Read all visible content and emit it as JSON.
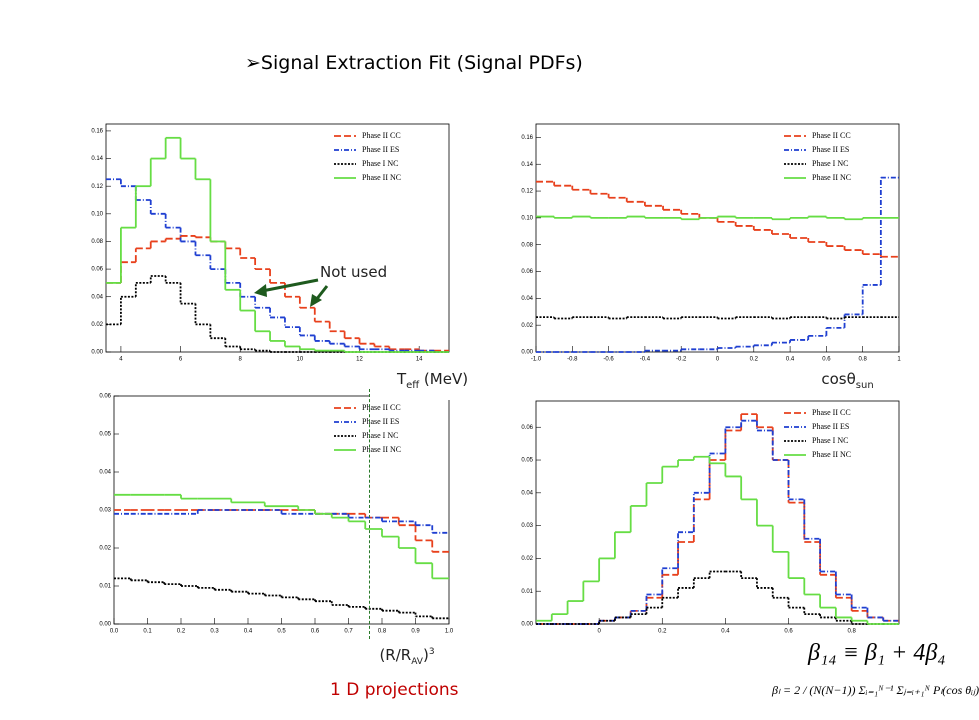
{
  "title": "Signal Extraction Fit (Signal PDFs)",
  "annotation": "Not used",
  "footer": "1 D projections",
  "formulas": [
    "β₁₄ ≡ β₁ + 4β₄",
    "βₗ = 2 / (N(N−1)) Σᵢ₌₁ᴺ⁻¹ Σⱼ₌ᵢ₊₁ᴺ Pₗ(cos θᵢⱼ)"
  ],
  "chart_data": [
    {
      "type": "histogram",
      "x_label": [
        "T",
        "eff",
        " (MeV)"
      ],
      "legend": "upper right",
      "bins": [
        3.5,
        4,
        4.5,
        5,
        5.5,
        6,
        6.5,
        7,
        7.5,
        8,
        8.5,
        9,
        9.5,
        10,
        10.5,
        11,
        11.5,
        12,
        12.5,
        13,
        13.5,
        14,
        14.5,
        15
      ],
      "xlim": [
        3.5,
        15
      ],
      "xticks": [
        4,
        6,
        8,
        10,
        12,
        14
      ],
      "ylim": [
        0,
        0.165
      ],
      "yticks": [
        {
          "value": 0,
          "label": "0.00"
        },
        0.02,
        0.04,
        0.06,
        0.08,
        {
          "value": 0.1,
          "label": "0.10"
        },
        0.12,
        0.14,
        0.16
      ],
      "series": [
        {
          "name": "Phase II CC",
          "color": "#e8401c",
          "style": "dashed",
          "values": [
            0.05,
            0.065,
            0.075,
            0.08,
            0.082,
            0.084,
            0.083,
            0.08,
            0.075,
            0.068,
            0.06,
            0.05,
            0.04,
            0.032,
            0.022,
            0.015,
            0.01,
            0.006,
            0.004,
            0.002,
            0.002,
            0.001,
            0.001
          ]
        },
        {
          "name": "Phase II ES",
          "color": "#1f3fd1",
          "style": "dashdot",
          "values": [
            0.125,
            0.12,
            0.11,
            0.1,
            0.09,
            0.08,
            0.07,
            0.06,
            0.05,
            0.04,
            0.032,
            0.025,
            0.018,
            0.012,
            0.008,
            0.006,
            0.004,
            0.002,
            0.002,
            0.001,
            0.001,
            0.001,
            0
          ]
        },
        {
          "name": "Phase I  NC",
          "color": "#000000",
          "style": "dotted",
          "values": [
            0.02,
            0.04,
            0.05,
            0.055,
            0.05,
            0.035,
            0.02,
            0.01,
            0.004,
            0.002,
            0.001,
            0,
            0,
            0,
            0,
            0,
            0,
            0,
            0,
            0,
            0,
            0,
            0
          ]
        },
        {
          "name": "Phase II NC",
          "color": "#66dd44",
          "style": "solid",
          "values": [
            0.05,
            0.09,
            0.12,
            0.14,
            0.155,
            0.14,
            0.125,
            0.08,
            0.045,
            0.03,
            0.015,
            0.008,
            0.004,
            0.002,
            0.001,
            0.001,
            0,
            0,
            0,
            0,
            0,
            0,
            0
          ]
        }
      ]
    },
    {
      "type": "histogram",
      "x_label": [
        "cosθ",
        "sun"
      ],
      "legend": "upper right",
      "bins": [
        -1,
        -0.9,
        -0.8,
        -0.7,
        -0.6,
        -0.5,
        -0.4,
        -0.3,
        -0.2,
        -0.1,
        0,
        0.1,
        0.2,
        0.3,
        0.4,
        0.5,
        0.6,
        0.7,
        0.8,
        0.9,
        1
      ],
      "xlim": [
        -1,
        1
      ],
      "xticks": [
        {
          "value": -1,
          "label": "-1.0"
        },
        -0.8,
        -0.6,
        -0.4,
        -0.2,
        0,
        0.2,
        0.4,
        0.6,
        0.8,
        1
      ],
      "ylim": [
        0,
        0.17
      ],
      "yticks": [
        {
          "value": 0,
          "label": "0.00"
        },
        0.02,
        0.04,
        0.06,
        0.08,
        {
          "value": 0.1,
          "label": "0.10"
        },
        0.12,
        0.14,
        0.16
      ],
      "series": [
        {
          "name": "Phase II CC",
          "color": "#e8401c",
          "style": "dashed",
          "values": [
            0.127,
            0.124,
            0.121,
            0.118,
            0.115,
            0.112,
            0.109,
            0.106,
            0.103,
            0.1,
            0.097,
            0.094,
            0.091,
            0.088,
            0.085,
            0.082,
            0.079,
            0.076,
            0.073,
            0.071
          ]
        },
        {
          "name": "Phase II ES",
          "color": "#1f3fd1",
          "style": "dashdot",
          "values": [
            0,
            0,
            0,
            0,
            0,
            0,
            0.001,
            0.001,
            0.002,
            0.002,
            0.003,
            0.004,
            0.005,
            0.007,
            0.009,
            0.012,
            0.018,
            0.028,
            0.05,
            0.13
          ]
        },
        {
          "name": "Phase I  NC",
          "color": "#000000",
          "style": "dotted",
          "values": [
            0.026,
            0.025,
            0.026,
            0.026,
            0.025,
            0.026,
            0.026,
            0.025,
            0.026,
            0.026,
            0.025,
            0.026,
            0.026,
            0.025,
            0.026,
            0.026,
            0.025,
            0.026,
            0.026,
            0.026
          ]
        },
        {
          "name": "Phase II NC",
          "color": "#66dd44",
          "style": "solid",
          "values": [
            0.101,
            0.1,
            0.101,
            0.1,
            0.1,
            0.101,
            0.1,
            0.1,
            0.099,
            0.1,
            0.101,
            0.1,
            0.1,
            0.099,
            0.1,
            0.101,
            0.1,
            0.099,
            0.1,
            0.1
          ]
        }
      ]
    },
    {
      "type": "histogram",
      "x_label": [
        "(R/R",
        "AV",
        ")",
        "3"
      ],
      "legend": "upper right",
      "bins": [
        0,
        0.05,
        0.1,
        0.15,
        0.2,
        0.25,
        0.3,
        0.35,
        0.4,
        0.45,
        0.5,
        0.55,
        0.6,
        0.65,
        0.7,
        0.75,
        0.8,
        0.85,
        0.9,
        0.95,
        1
      ],
      "xlim": [
        0,
        1
      ],
      "xticks": [
        {
          "value": 0,
          "label": "0.0"
        },
        0.1,
        0.2,
        0.3,
        0.4,
        0.5,
        0.6,
        0.7,
        0.8,
        0.9,
        {
          "value": 1,
          "label": "1.0"
        }
      ],
      "ylim": [
        0,
        0.06
      ],
      "yticks": [
        {
          "value": 0,
          "label": "0.00"
        },
        0.01,
        0.02,
        0.03,
        0.04,
        0.05,
        0.06
      ],
      "series": [
        {
          "name": "Phase II CC",
          "color": "#e8401c",
          "style": "dashed",
          "values": [
            0.03,
            0.03,
            0.03,
            0.03,
            0.03,
            0.03,
            0.03,
            0.03,
            0.03,
            0.03,
            0.03,
            0.03,
            0.029,
            0.029,
            0.029,
            0.028,
            0.028,
            0.026,
            0.022,
            0.019
          ]
        },
        {
          "name": "Phase II ES",
          "color": "#1f3fd1",
          "style": "dashdot",
          "values": [
            0.029,
            0.029,
            0.029,
            0.029,
            0.029,
            0.03,
            0.03,
            0.03,
            0.03,
            0.03,
            0.029,
            0.029,
            0.029,
            0.029,
            0.028,
            0.028,
            0.027,
            0.027,
            0.026,
            0.024
          ]
        },
        {
          "name": "Phase I  NC",
          "color": "#000000",
          "style": "dotted",
          "values": [
            0.012,
            0.0115,
            0.011,
            0.0105,
            0.01,
            0.0095,
            0.009,
            0.0085,
            0.008,
            0.0075,
            0.007,
            0.0065,
            0.006,
            0.005,
            0.0045,
            0.004,
            0.0035,
            0.003,
            0.002,
            0.0015
          ]
        },
        {
          "name": "Phase II NC",
          "color": "#66dd44",
          "style": "solid",
          "values": [
            0.034,
            0.034,
            0.034,
            0.034,
            0.033,
            0.033,
            0.033,
            0.032,
            0.032,
            0.031,
            0.031,
            0.03,
            0.029,
            0.028,
            0.027,
            0.025,
            0.023,
            0.02,
            0.016,
            0.012
          ]
        }
      ]
    },
    {
      "type": "histogram",
      "legend": "upper right",
      "bins": [
        -0.2,
        -0.15,
        -0.1,
        -0.05,
        0,
        0.05,
        0.1,
        0.15,
        0.2,
        0.25,
        0.3,
        0.35,
        0.4,
        0.45,
        0.5,
        0.55,
        0.6,
        0.65,
        0.7,
        0.75,
        0.8,
        0.85,
        0.9,
        0.95
      ],
      "xlim": [
        -0.2,
        0.95
      ],
      "xticks": [
        0,
        0.2,
        0.4,
        0.6,
        0.8
      ],
      "ylim": [
        0,
        0.068
      ],
      "yticks": [
        {
          "value": 0,
          "label": "0.00"
        },
        0.01,
        0.02,
        0.03,
        0.04,
        0.05,
        0.06
      ],
      "series": [
        {
          "name": "Phase II CC",
          "color": "#e8401c",
          "style": "dashed",
          "values": [
            0,
            0,
            0,
            0,
            0.001,
            0.002,
            0.004,
            0.008,
            0.015,
            0.025,
            0.038,
            0.05,
            0.059,
            0.064,
            0.06,
            0.05,
            0.037,
            0.025,
            0.015,
            0.008,
            0.004,
            0.002,
            0.001
          ]
        },
        {
          "name": "Phase II ES",
          "color": "#1f3fd1",
          "style": "dashdot",
          "values": [
            0,
            0,
            0,
            0,
            0.001,
            0.002,
            0.004,
            0.009,
            0.017,
            0.028,
            0.04,
            0.052,
            0.06,
            0.062,
            0.059,
            0.05,
            0.038,
            0.026,
            0.016,
            0.009,
            0.005,
            0.002,
            0.001
          ]
        },
        {
          "name": "Phase I  NC",
          "color": "#000000",
          "style": "dotted",
          "values": [
            0,
            0,
            0,
            0,
            0.001,
            0.002,
            0.003,
            0.005,
            0.008,
            0.011,
            0.014,
            0.016,
            0.016,
            0.014,
            0.011,
            0.008,
            0.005,
            0.003,
            0.002,
            0.001,
            0,
            0,
            0
          ]
        },
        {
          "name": "Phase II NC",
          "color": "#66dd44",
          "style": "solid",
          "values": [
            0.001,
            0.003,
            0.007,
            0.013,
            0.02,
            0.028,
            0.036,
            0.043,
            0.048,
            0.05,
            0.051,
            0.049,
            0.045,
            0.038,
            0.03,
            0.022,
            0.014,
            0.009,
            0.005,
            0.002,
            0.001,
            0,
            0
          ]
        }
      ]
    }
  ]
}
